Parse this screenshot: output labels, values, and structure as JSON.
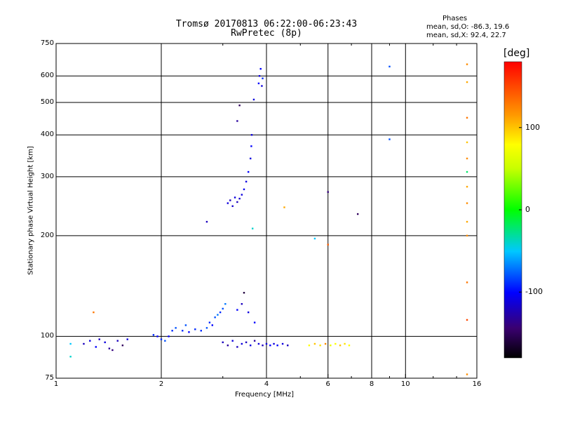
{
  "chart_data": {
    "type": "scatter",
    "title": "Tromsø 20170813 06:22:00-06:23:43",
    "subtitle": "RwPretec (8p)",
    "xlabel": "Frequency [MHz]",
    "ylabel": "Stationary phase Virtual Height [km]",
    "x_scale": "log",
    "y_scale": "log",
    "xlim": [
      1,
      16
    ],
    "ylim": [
      75,
      750
    ],
    "x_ticks": [
      "1",
      "2",
      "4",
      "6",
      "8",
      "10",
      "16"
    ],
    "x_tick_values": [
      1,
      2,
      4,
      6,
      8,
      10,
      16
    ],
    "y_ticks": [
      "75",
      "100",
      "200",
      "300",
      "400",
      "500",
      "600",
      "750"
    ],
    "y_tick_values": [
      75,
      100,
      200,
      300,
      400,
      500,
      600,
      750
    ],
    "grid": true,
    "colorbar": {
      "label": "[deg]",
      "range": [
        -180,
        180
      ],
      "tick_labels": [
        "100",
        "0",
        "-100"
      ],
      "tick_values": [
        100,
        0,
        -100
      ]
    },
    "phases_box": {
      "title": "Phases",
      "o_line": "mean, sd,O: -86.3, 19.6",
      "x_line": "mean, sd,X:  92.4, 22.7"
    },
    "points": [
      {
        "x": 1.1,
        "y": 95,
        "phase": -50
      },
      {
        "x": 1.1,
        "y": 87,
        "phase": -40
      },
      {
        "x": 1.2,
        "y": 95,
        "phase": -120
      },
      {
        "x": 1.25,
        "y": 97,
        "phase": -110
      },
      {
        "x": 1.28,
        "y": 118,
        "phase": 130
      },
      {
        "x": 1.3,
        "y": 93,
        "phase": -100
      },
      {
        "x": 1.33,
        "y": 98,
        "phase": -120
      },
      {
        "x": 1.38,
        "y": 96,
        "phase": -110
      },
      {
        "x": 1.42,
        "y": 92,
        "phase": -130
      },
      {
        "x": 1.45,
        "y": 91,
        "phase": -140
      },
      {
        "x": 1.5,
        "y": 97,
        "phase": -120
      },
      {
        "x": 1.55,
        "y": 94,
        "phase": -150
      },
      {
        "x": 1.6,
        "y": 98,
        "phase": -110
      },
      {
        "x": 1.9,
        "y": 101,
        "phase": -90
      },
      {
        "x": 1.95,
        "y": 100,
        "phase": -100
      },
      {
        "x": 2.0,
        "y": 98,
        "phase": -90
      },
      {
        "x": 2.05,
        "y": 97,
        "phase": -80
      },
      {
        "x": 2.1,
        "y": 100,
        "phase": -100
      },
      {
        "x": 2.15,
        "y": 104,
        "phase": -90
      },
      {
        "x": 2.2,
        "y": 106,
        "phase": -80
      },
      {
        "x": 2.3,
        "y": 104,
        "phase": -90
      },
      {
        "x": 2.35,
        "y": 108,
        "phase": -80
      },
      {
        "x": 2.4,
        "y": 103,
        "phase": -100
      },
      {
        "x": 2.5,
        "y": 105,
        "phase": -90
      },
      {
        "x": 2.6,
        "y": 104,
        "phase": -90
      },
      {
        "x": 2.7,
        "y": 106,
        "phase": -80
      },
      {
        "x": 2.75,
        "y": 110,
        "phase": -90
      },
      {
        "x": 2.8,
        "y": 108,
        "phase": -100
      },
      {
        "x": 2.85,
        "y": 114,
        "phase": -80
      },
      {
        "x": 2.9,
        "y": 116,
        "phase": -70
      },
      {
        "x": 2.95,
        "y": 118,
        "phase": -90
      },
      {
        "x": 3.0,
        "y": 121,
        "phase": -80
      },
      {
        "x": 3.05,
        "y": 125,
        "phase": -70
      },
      {
        "x": 3.0,
        "y": 96,
        "phase": -120
      },
      {
        "x": 3.1,
        "y": 94,
        "phase": -130
      },
      {
        "x": 3.2,
        "y": 97,
        "phase": -110
      },
      {
        "x": 3.3,
        "y": 93,
        "phase": -120
      },
      {
        "x": 3.4,
        "y": 95,
        "phase": -110
      },
      {
        "x": 3.5,
        "y": 96,
        "phase": -120
      },
      {
        "x": 3.6,
        "y": 94,
        "phase": -110
      },
      {
        "x": 3.7,
        "y": 97,
        "phase": -130
      },
      {
        "x": 3.8,
        "y": 95,
        "phase": -110
      },
      {
        "x": 3.9,
        "y": 94,
        "phase": -120
      },
      {
        "x": 4.0,
        "y": 95,
        "phase": -110
      },
      {
        "x": 4.1,
        "y": 94,
        "phase": -100
      },
      {
        "x": 4.2,
        "y": 95,
        "phase": -110
      },
      {
        "x": 4.3,
        "y": 94,
        "phase": -100
      },
      {
        "x": 4.45,
        "y": 95,
        "phase": -110
      },
      {
        "x": 4.6,
        "y": 94,
        "phase": -120
      },
      {
        "x": 5.3,
        "y": 94,
        "phase": 80
      },
      {
        "x": 5.5,
        "y": 95,
        "phase": 100
      },
      {
        "x": 5.7,
        "y": 94,
        "phase": 90
      },
      {
        "x": 5.9,
        "y": 95,
        "phase": 120
      },
      {
        "x": 6.1,
        "y": 94,
        "phase": 70
      },
      {
        "x": 6.3,
        "y": 95,
        "phase": 80
      },
      {
        "x": 6.5,
        "y": 94,
        "phase": 100
      },
      {
        "x": 6.7,
        "y": 95,
        "phase": 90
      },
      {
        "x": 6.9,
        "y": 94,
        "phase": 80
      },
      {
        "x": 3.4,
        "y": 125,
        "phase": -120
      },
      {
        "x": 3.45,
        "y": 135,
        "phase": -160
      },
      {
        "x": 3.3,
        "y": 120,
        "phase": -100
      },
      {
        "x": 3.55,
        "y": 118,
        "phase": -110
      },
      {
        "x": 3.7,
        "y": 110,
        "phase": -100
      },
      {
        "x": 3.1,
        "y": 250,
        "phase": -110
      },
      {
        "x": 3.15,
        "y": 255,
        "phase": -120
      },
      {
        "x": 3.2,
        "y": 245,
        "phase": -115
      },
      {
        "x": 3.25,
        "y": 260,
        "phase": -110
      },
      {
        "x": 3.3,
        "y": 252,
        "phase": -120
      },
      {
        "x": 3.35,
        "y": 258,
        "phase": -115
      },
      {
        "x": 3.4,
        "y": 265,
        "phase": -110
      },
      {
        "x": 3.45,
        "y": 275,
        "phase": -105
      },
      {
        "x": 3.5,
        "y": 290,
        "phase": -110
      },
      {
        "x": 3.55,
        "y": 310,
        "phase": -100
      },
      {
        "x": 3.6,
        "y": 340,
        "phase": -110
      },
      {
        "x": 3.62,
        "y": 370,
        "phase": -100
      },
      {
        "x": 3.63,
        "y": 400,
        "phase": -110
      },
      {
        "x": 3.35,
        "y": 490,
        "phase": -150
      },
      {
        "x": 3.3,
        "y": 440,
        "phase": -130
      },
      {
        "x": 3.68,
        "y": 510,
        "phase": -110
      },
      {
        "x": 3.8,
        "y": 570,
        "phase": -100
      },
      {
        "x": 3.82,
        "y": 600,
        "phase": -110
      },
      {
        "x": 3.85,
        "y": 630,
        "phase": -100
      },
      {
        "x": 3.9,
        "y": 590,
        "phase": -90
      },
      {
        "x": 3.88,
        "y": 560,
        "phase": -110
      },
      {
        "x": 2.7,
        "y": 220,
        "phase": -120
      },
      {
        "x": 3.65,
        "y": 210,
        "phase": -40
      },
      {
        "x": 4.5,
        "y": 243,
        "phase": 110
      },
      {
        "x": 5.5,
        "y": 196,
        "phase": -50
      },
      {
        "x": 6.0,
        "y": 188,
        "phase": 140
      },
      {
        "x": 6.0,
        "y": 270,
        "phase": -140
      },
      {
        "x": 7.3,
        "y": 232,
        "phase": -150
      },
      {
        "x": 9.0,
        "y": 640,
        "phase": -80
      },
      {
        "x": 9.0,
        "y": 388,
        "phase": -80
      },
      {
        "x": 15,
        "y": 650,
        "phase": 120
      },
      {
        "x": 15,
        "y": 575,
        "phase": 110
      },
      {
        "x": 15,
        "y": 450,
        "phase": 130
      },
      {
        "x": 15,
        "y": 380,
        "phase": 100
      },
      {
        "x": 15,
        "y": 340,
        "phase": 120
      },
      {
        "x": 15,
        "y": 310,
        "phase": -20
      },
      {
        "x": 15,
        "y": 280,
        "phase": 110
      },
      {
        "x": 15,
        "y": 250,
        "phase": 120
      },
      {
        "x": 15,
        "y": 220,
        "phase": 110
      },
      {
        "x": 15,
        "y": 200,
        "phase": 120
      },
      {
        "x": 15,
        "y": 145,
        "phase": 130
      },
      {
        "x": 15,
        "y": 112,
        "phase": 150
      },
      {
        "x": 15,
        "y": 77,
        "phase": 120
      }
    ]
  }
}
